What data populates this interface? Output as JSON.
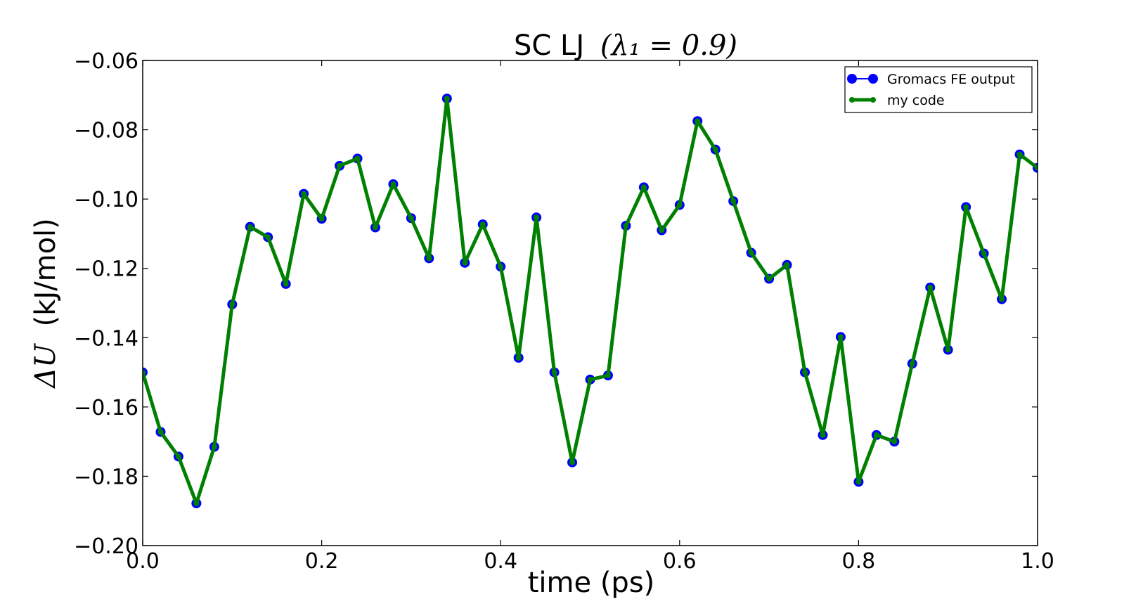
{
  "chart_data": {
    "type": "line",
    "title": {
      "prefix": "SC LJ",
      "math": "(λ₁ = 0.9)"
    },
    "xlabel": "time (ps)",
    "ylabel": {
      "math": "ΔU",
      "text": "(kJ/mol)"
    },
    "xlim": [
      0.0,
      1.0
    ],
    "ylim": [
      -0.2,
      -0.06
    ],
    "xticks": [
      "0.0",
      "0.2",
      "0.4",
      "0.6",
      "0.8",
      "1.0"
    ],
    "xtick_values": [
      0.0,
      0.2,
      0.4,
      0.6,
      0.8,
      1.0
    ],
    "yticks": [
      "−0.06",
      "−0.08",
      "−0.10",
      "−0.12",
      "−0.14",
      "−0.16",
      "−0.18",
      "−0.20"
    ],
    "ytick_values": [
      -0.06,
      -0.08,
      -0.1,
      -0.12,
      -0.14,
      -0.16,
      -0.18,
      -0.2
    ],
    "grid": false,
    "legend_position": "top-right",
    "x": [
      0.0,
      0.02,
      0.04,
      0.06,
      0.08,
      0.1,
      0.12,
      0.14,
      0.16,
      0.18,
      0.2,
      0.22,
      0.24,
      0.26,
      0.28,
      0.3,
      0.32,
      0.34,
      0.36,
      0.38,
      0.4,
      0.42,
      0.44,
      0.46,
      0.48,
      0.5,
      0.52,
      0.54,
      0.56,
      0.58,
      0.6,
      0.62,
      0.64,
      0.66,
      0.68,
      0.7,
      0.72,
      0.74,
      0.76,
      0.78,
      0.8,
      0.82,
      0.84,
      0.86,
      0.88,
      0.9,
      0.92,
      0.94,
      0.96,
      0.98,
      1.0
    ],
    "series": [
      {
        "name": "Gromacs FE output",
        "color": "#0000ff",
        "style": "line-with-large-markers",
        "values": [
          -0.15,
          -0.1672,
          -0.1743,
          -0.1878,
          -0.1715,
          -0.1304,
          -0.108,
          -0.111,
          -0.1245,
          -0.0985,
          -0.1057,
          -0.0904,
          -0.0883,
          -0.1082,
          -0.0957,
          -0.1055,
          -0.1171,
          -0.071,
          -0.1184,
          -0.1073,
          -0.1195,
          -0.1458,
          -0.1053,
          -0.15,
          -0.176,
          -0.1521,
          -0.1509,
          -0.1077,
          -0.0966,
          -0.109,
          -0.1017,
          -0.0775,
          -0.0857,
          -0.1006,
          -0.1155,
          -0.123,
          -0.119,
          -0.15,
          -0.1681,
          -0.1398,
          -0.1816,
          -0.1681,
          -0.17,
          -0.1475,
          -0.1255,
          -0.1435,
          -0.1023,
          -0.1157,
          -0.1289,
          -0.0871,
          -0.091
        ]
      },
      {
        "name": "my code",
        "color": "#008000",
        "style": "thick-line-with-small-markers",
        "values": [
          -0.15,
          -0.1672,
          -0.1743,
          -0.1878,
          -0.1715,
          -0.1304,
          -0.108,
          -0.111,
          -0.1245,
          -0.0985,
          -0.1057,
          -0.0904,
          -0.0883,
          -0.1082,
          -0.0957,
          -0.1055,
          -0.1171,
          -0.071,
          -0.1184,
          -0.1073,
          -0.1195,
          -0.1458,
          -0.1053,
          -0.15,
          -0.176,
          -0.1521,
          -0.1509,
          -0.1077,
          -0.0966,
          -0.109,
          -0.1017,
          -0.0775,
          -0.0857,
          -0.1006,
          -0.1155,
          -0.123,
          -0.119,
          -0.15,
          -0.1681,
          -0.1398,
          -0.1816,
          -0.1681,
          -0.17,
          -0.1475,
          -0.1255,
          -0.1435,
          -0.1023,
          -0.1157,
          -0.1289,
          -0.0871,
          -0.091
        ]
      }
    ]
  }
}
